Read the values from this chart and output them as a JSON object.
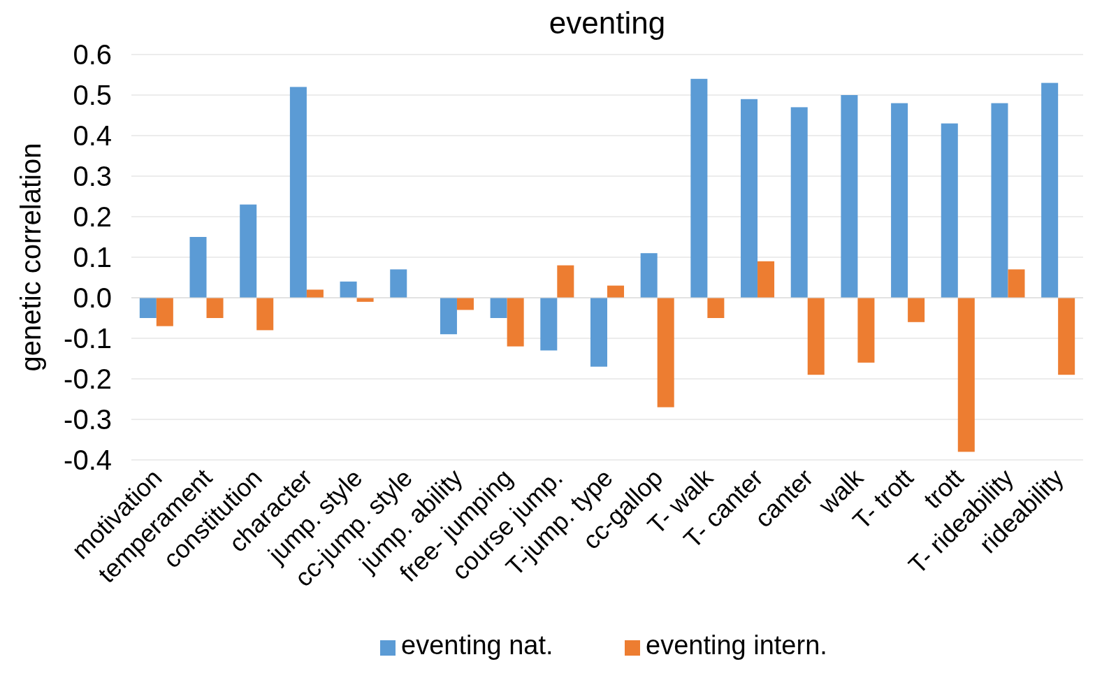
{
  "chart_data": {
    "type": "bar",
    "title": "eventing",
    "ylabel": "genetic correlation",
    "categories": [
      "motivation",
      "temperament",
      "constitution",
      "character",
      "jump. style",
      "cc-jump. style",
      "jump. ability",
      "free- jumping",
      "course jump.",
      "T-jump. type",
      "cc-gallop",
      "T- walk",
      "T- canter",
      "canter",
      "walk",
      "T- trott",
      "trott",
      "T- rideability",
      "rideability"
    ],
    "series": [
      {
        "name": "eventing nat.",
        "color": "#5b9bd5",
        "values": [
          -0.05,
          0.15,
          0.23,
          0.52,
          0.04,
          0.07,
          -0.09,
          -0.05,
          -0.13,
          -0.17,
          0.11,
          0.54,
          0.49,
          0.47,
          0.5,
          0.48,
          0.43,
          0.48,
          0.53
        ]
      },
      {
        "name": "eventing intern.",
        "color": "#ed7d31",
        "values": [
          -0.07,
          -0.05,
          -0.08,
          0.02,
          -0.01,
          null,
          -0.03,
          -0.12,
          0.08,
          0.03,
          -0.27,
          -0.05,
          0.09,
          -0.19,
          -0.16,
          -0.06,
          -0.38,
          0.07,
          -0.19
        ]
      }
    ],
    "ylim": [
      -0.4,
      0.6
    ],
    "yticks": [
      {
        "value": -0.4,
        "label": "-0.4"
      },
      {
        "value": -0.3,
        "label": "-0.3"
      },
      {
        "value": -0.2,
        "label": "-0.2"
      },
      {
        "value": -0.1,
        "label": "-0.1"
      },
      {
        "value": 0,
        "label": "0.0"
      },
      {
        "value": 0.1,
        "label": "0.1"
      },
      {
        "value": 0.2,
        "label": "0.2"
      },
      {
        "value": 0.3,
        "label": "0.3"
      },
      {
        "value": 0.4,
        "label": "0.4"
      },
      {
        "value": 0.5,
        "label": "0.5"
      },
      {
        "value": 0.6,
        "label": "0.6"
      }
    ],
    "grid": "y",
    "legend": "bottom"
  }
}
